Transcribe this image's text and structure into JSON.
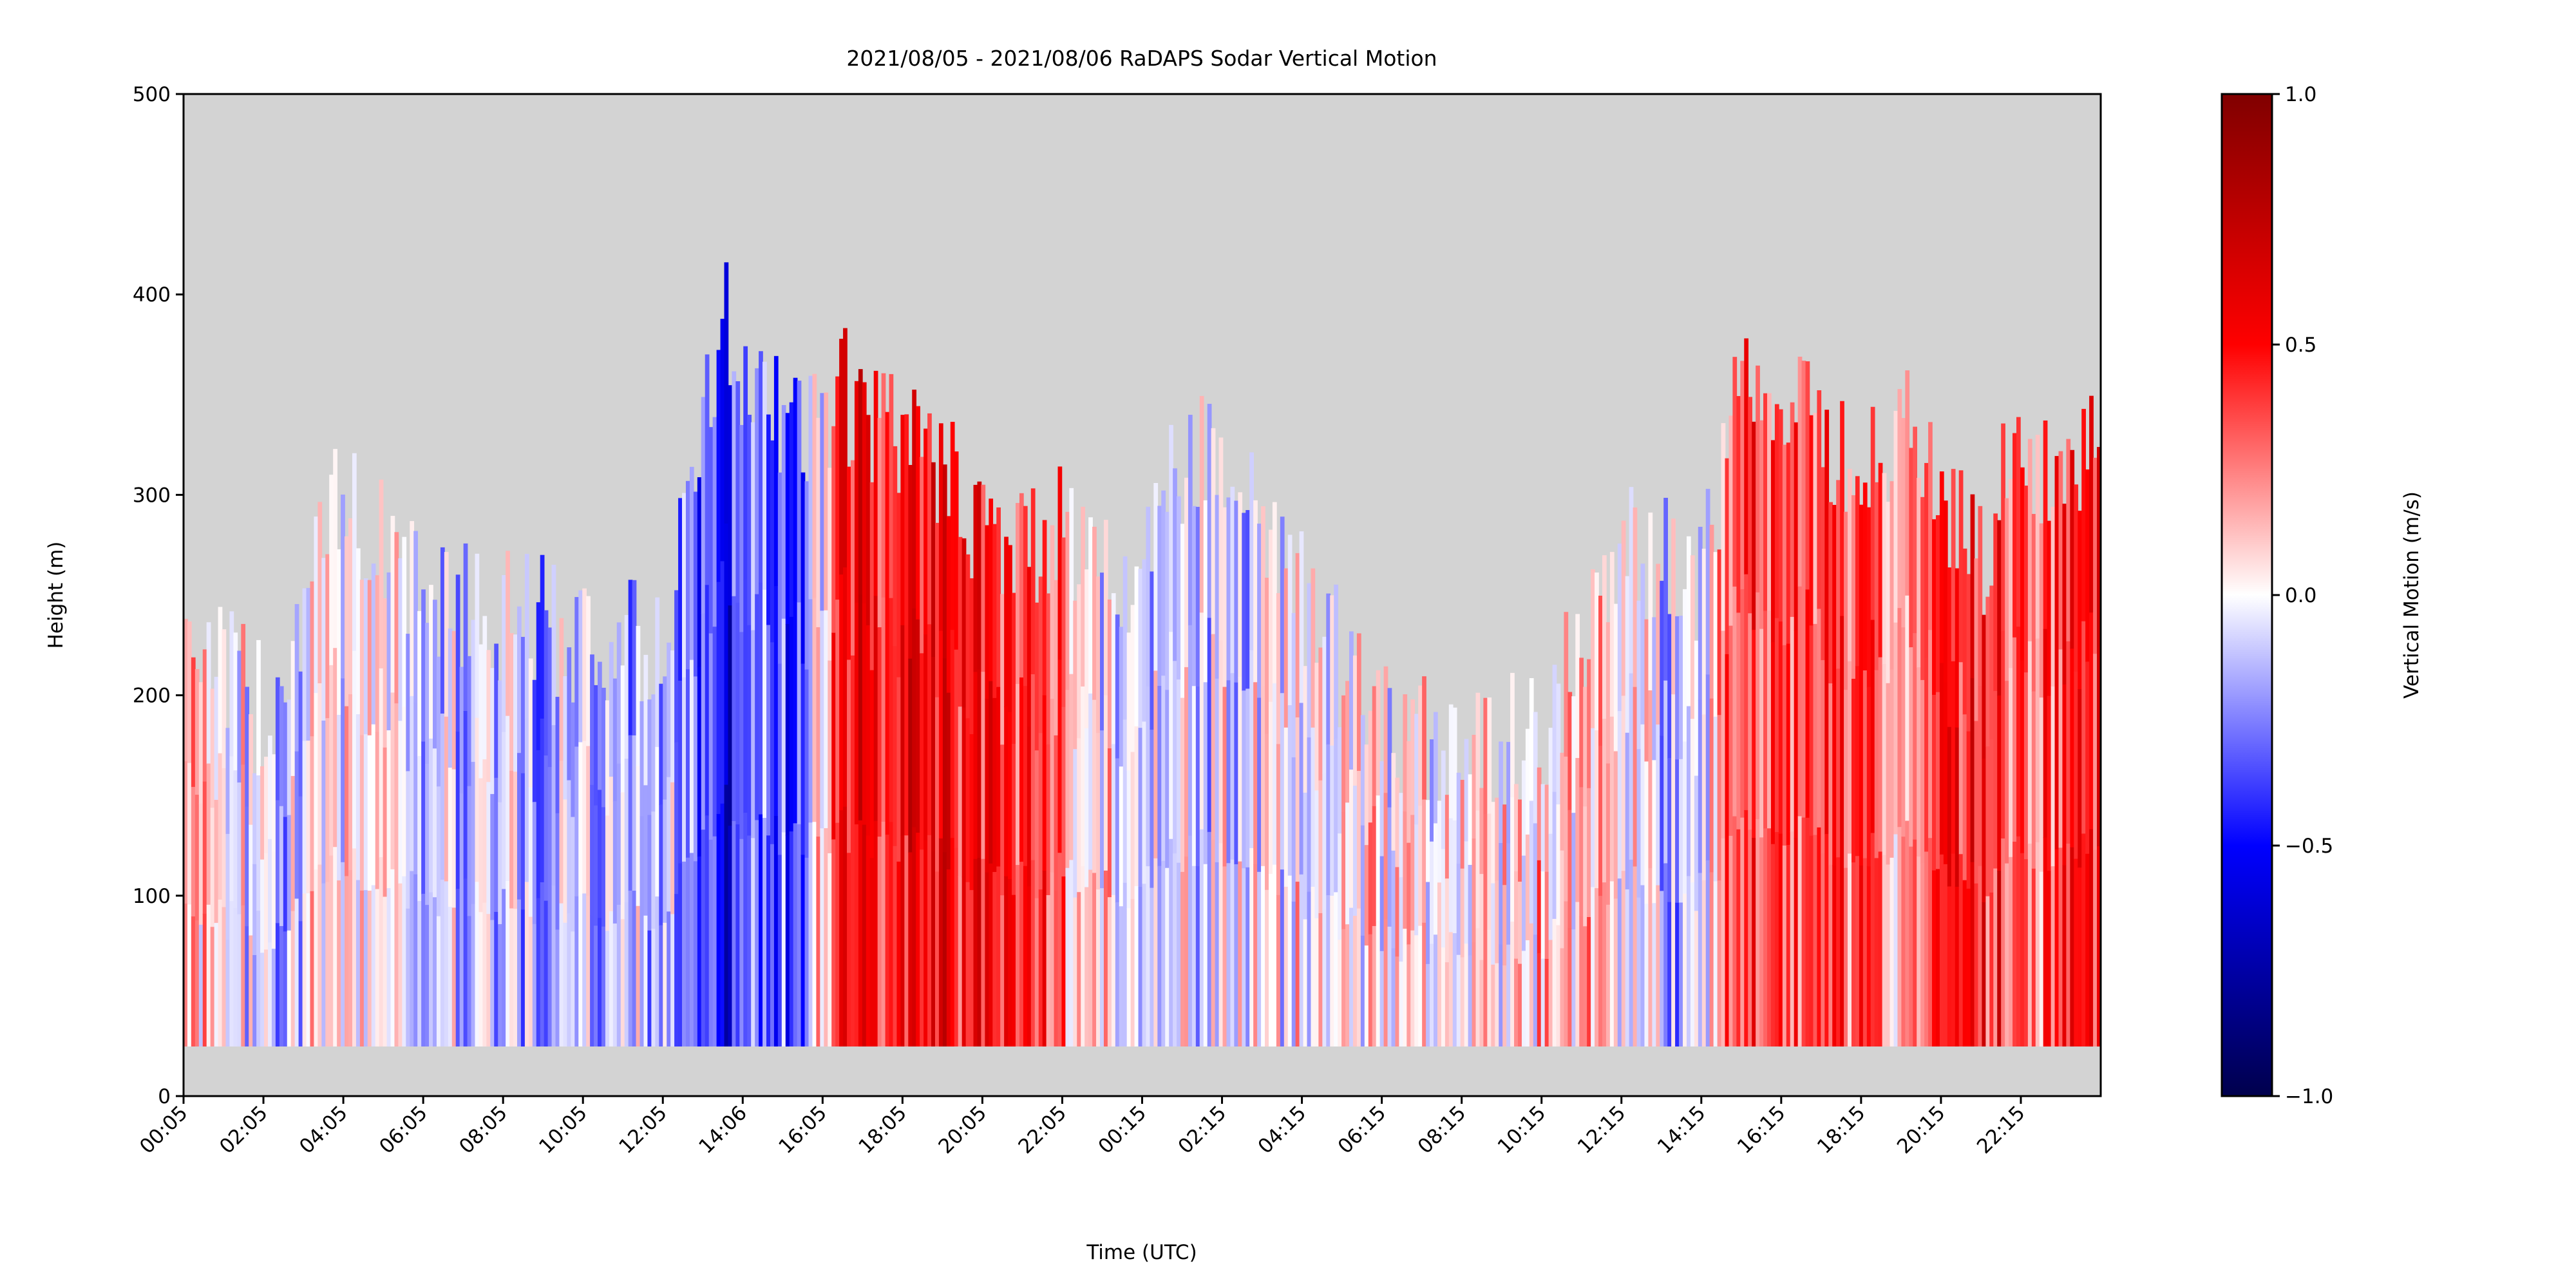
{
  "chart_data": {
    "type": "heatmap",
    "title": "2021/08/05 - 2021/08/06 RaDAPS Sodar Vertical Motion",
    "xlabel": "Time (UTC)",
    "ylabel": "Height (m)",
    "ylim": [
      0,
      500
    ],
    "yticks": [
      "0",
      "100",
      "200",
      "300",
      "400",
      "500"
    ],
    "xticks": [
      "00:05",
      "02:05",
      "04:05",
      "06:05",
      "08:05",
      "10:05",
      "12:05",
      "14:06",
      "16:05",
      "18:05",
      "20:05",
      "22:05",
      "00:15",
      "02:15",
      "04:15",
      "06:15",
      "08:15",
      "10:15",
      "12:15",
      "14:15",
      "16:15",
      "18:15",
      "20:15",
      "22:15"
    ],
    "x_range_hours": [
      0,
      48
    ],
    "missing_color": "#d3d3d3",
    "min_valid_height": 25,
    "colorbar": {
      "label": "Vertical Motion (m/s)",
      "colormap": "seismic",
      "range": [
        -1.0,
        1.0
      ],
      "ticks": [
        "1.0",
        "0.5",
        "0.0",
        "−0.5",
        "−1.0"
      ],
      "stops": [
        "#00004c",
        "#0000ff",
        "#ffffff",
        "#ff0000",
        "#800000"
      ]
    },
    "profiles": {
      "time_hours": [
        0.0,
        2.0,
        4.0,
        6.0,
        8.0,
        10.0,
        12.0,
        13.5,
        14.5,
        15.5,
        16.5,
        17.5,
        18.5,
        19.5,
        20.5,
        21.5,
        22.5,
        23.5,
        24.5,
        26.0,
        28.0,
        30.0,
        32.0,
        34.0,
        36.0,
        37.0,
        38.0,
        39.0,
        40.0,
        41.0,
        42.0,
        43.0,
        44.0,
        45.0,
        46.0,
        47.0,
        48.0
      ],
      "top_height_m": [
        240,
        190,
        300,
        250,
        240,
        230,
        220,
        390,
        340,
        330,
        350,
        330,
        320,
        300,
        270,
        280,
        280,
        250,
        300,
        330,
        250,
        180,
        180,
        180,
        270,
        270,
        260,
        350,
        340,
        330,
        310,
        340,
        300,
        270,
        330,
        300,
        350
      ],
      "mean_motion_ms": [
        0.25,
        -0.1,
        0.05,
        -0.05,
        -0.1,
        -0.1,
        -0.1,
        -0.5,
        -0.2,
        -0.4,
        0.6,
        0.5,
        0.6,
        0.5,
        0.4,
        0.5,
        0.1,
        0.0,
        -0.1,
        -0.05,
        0.0,
        0.05,
        0.05,
        0.1,
        0.1,
        -0.2,
        -0.1,
        0.4,
        0.3,
        0.45,
        0.3,
        0.2,
        0.4,
        0.5,
        0.3,
        0.35,
        0.5
      ]
    }
  }
}
